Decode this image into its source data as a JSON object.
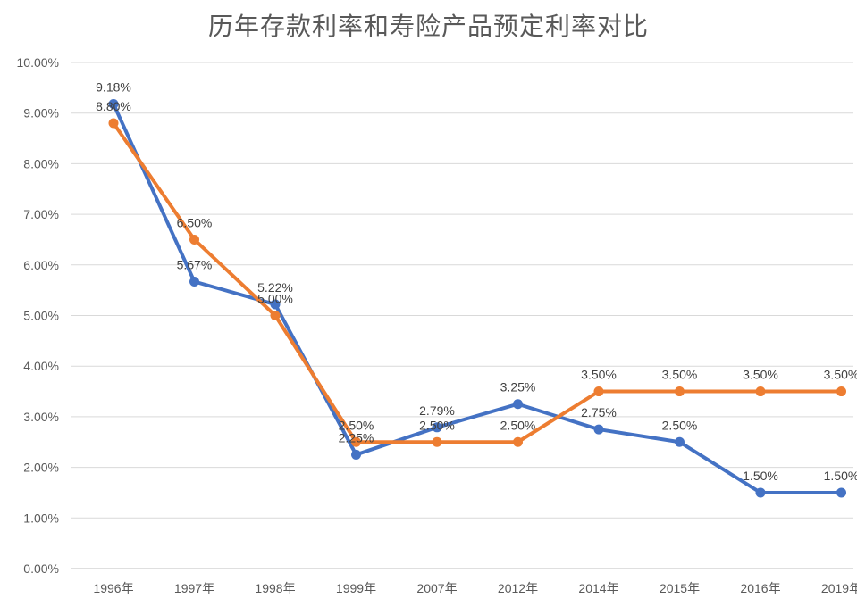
{
  "chart_data": {
    "type": "line",
    "title": "历年存款利率和寿险产品预定利率对比",
    "categories": [
      "1996年",
      "1997年",
      "1998年",
      "1999年",
      "2007年",
      "2012年",
      "2014年",
      "2015年",
      "2016年",
      "2019年"
    ],
    "ylim": [
      0,
      10
    ],
    "yticks": [
      0,
      1,
      2,
      3,
      4,
      5,
      6,
      7,
      8,
      9,
      10
    ],
    "ytick_labels": [
      "0.00%",
      "1.00%",
      "2.00%",
      "3.00%",
      "4.00%",
      "5.00%",
      "6.00%",
      "7.00%",
      "8.00%",
      "9.00%",
      "10.00%"
    ],
    "grid": true,
    "series": [
      {
        "color": "#4472c4",
        "values": [
          9.18,
          5.67,
          5.22,
          2.25,
          2.79,
          3.25,
          2.75,
          2.5,
          1.5,
          1.5
        ],
        "labels": [
          "9.18%",
          "5.67%",
          "5.22%",
          "2.25%",
          "2.79%",
          "3.25%",
          "2.75%",
          "2.50%",
          "1.50%",
          "1.50%"
        ]
      },
      {
        "color": "#ed7d31",
        "values": [
          8.8,
          6.5,
          5.0,
          2.5,
          2.5,
          2.5,
          3.5,
          3.5,
          3.5,
          3.5
        ],
        "labels": [
          "8.80%",
          "6.50%",
          "5.00%",
          "2.50%",
          "2.50%",
          "2.50%",
          "3.50%",
          "3.50%",
          "3.50%",
          "3.50%"
        ]
      }
    ]
  }
}
